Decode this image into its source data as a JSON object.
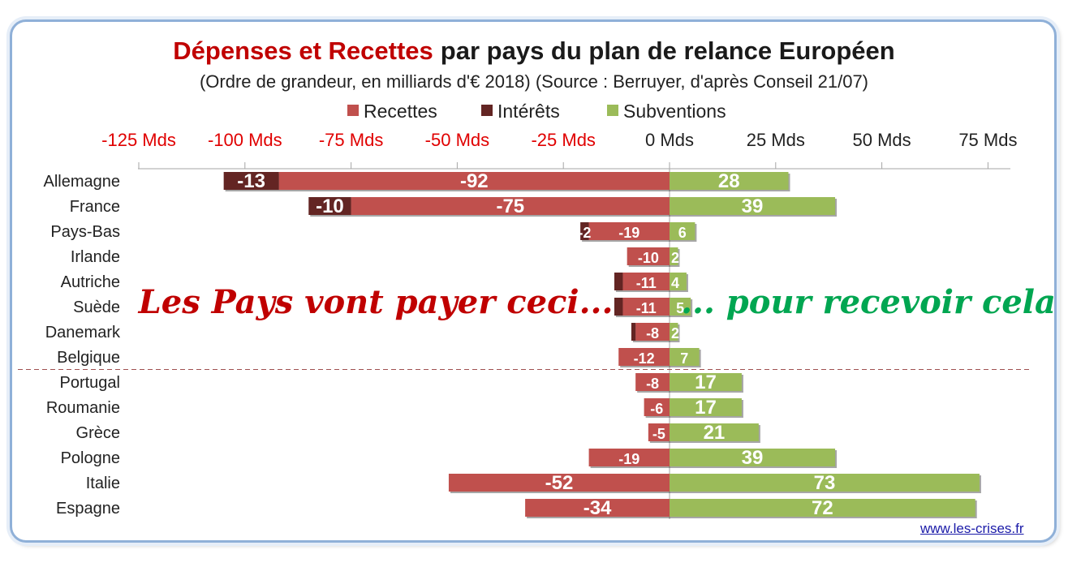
{
  "title_part1": "Dépenses et Recettes",
  "title_part2": "par pays du plan de relance Européen",
  "subtitle": "(Ordre de grandeur, en milliards d'€ 2018) (Source : Berruyer, d'après Conseil 21/07)",
  "slogan_left": "Les Pays vont payer ceci...",
  "slogan_right": "... pour recevoir cela",
  "source_link": "www.les-crises.fr",
  "colors": {
    "recettes": "#c0504d",
    "interets": "#632523",
    "subventions": "#9bbb59",
    "title_red": "#c00000",
    "neg_tick": "#e00000",
    "slogan_red": "#c00000",
    "slogan_green": "#00a651"
  },
  "chart_data": {
    "type": "bar",
    "orientation": "horizontal",
    "stacked": true,
    "categories": [
      "Allemagne",
      "France",
      "Pays-Bas",
      "Irlande",
      "Autriche",
      "Suède",
      "Danemark",
      "Belgique",
      "Portugal",
      "Roumanie",
      "Grèce",
      "Pologne",
      "Italie",
      "Espagne"
    ],
    "series": [
      {
        "name": "Recettes",
        "values": [
          -92,
          -75,
          -19,
          -10,
          -11,
          -11,
          -8,
          -12,
          -8,
          -6,
          -5,
          -19,
          -52,
          -34
        ]
      },
      {
        "name": "Intérêts",
        "values": [
          -13,
          -10,
          -2,
          0,
          -2,
          -2,
          -1,
          0,
          0,
          0,
          0,
          0,
          0,
          0
        ]
      },
      {
        "name": "Subventions",
        "values": [
          28,
          39,
          6,
          2,
          4,
          5,
          2,
          7,
          17,
          17,
          21,
          39,
          73,
          72
        ]
      }
    ],
    "data_labels": {
      "Recettes": [
        "-92",
        "-75",
        "-19",
        "-10",
        "-11",
        "-11",
        "-8",
        "-12",
        "-8",
        "-6",
        "-5",
        "-19",
        "-52",
        "-34"
      ],
      "Intérêts": [
        "-13",
        "-10",
        "-2",
        "",
        "",
        "",
        "",
        "",
        "",
        "",
        "",
        "",
        "",
        ""
      ],
      "Subventions": [
        "28",
        "39",
        "6",
        "2",
        "4",
        "5",
        "2",
        "7",
        "17",
        "17",
        "21",
        "39",
        "73",
        "72"
      ]
    },
    "xlim": [
      -125,
      80
    ],
    "xticks": [
      -125,
      -100,
      -75,
      -50,
      -25,
      0,
      25,
      50,
      75
    ],
    "xtick_labels": [
      "-125 Mds",
      "-100 Mds",
      "-75 Mds",
      "-50 Mds",
      "-25 Mds",
      "0 Mds",
      "25 Mds",
      "50 Mds",
      "75 Mds"
    ],
    "separator_after": "Belgique",
    "legend_position": "top"
  }
}
